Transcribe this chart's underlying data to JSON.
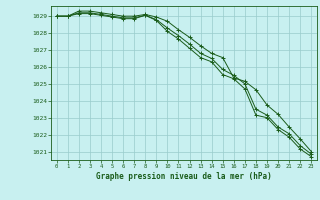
{
  "title": "Graphe pression niveau de la mer (hPa)",
  "background_color": "#c8f0f0",
  "grid_color": "#99cccc",
  "line_color": "#1a5c1a",
  "xlim": [
    -0.5,
    23.5
  ],
  "ylim": [
    1020.5,
    1029.6
  ],
  "yticks": [
    1021,
    1022,
    1023,
    1024,
    1025,
    1026,
    1027,
    1028,
    1029
  ],
  "xticks": [
    0,
    1,
    2,
    3,
    4,
    5,
    6,
    7,
    8,
    9,
    10,
    11,
    12,
    13,
    14,
    15,
    16,
    17,
    18,
    19,
    20,
    21,
    22,
    23
  ],
  "series": [
    [
      1029.0,
      1029.0,
      1029.15,
      1029.15,
      1029.05,
      1028.95,
      1028.85,
      1028.85,
      1029.05,
      1028.75,
      1028.1,
      1027.65,
      1027.1,
      1026.55,
      1026.3,
      1025.55,
      1025.3,
      1024.7,
      1023.15,
      1023.0,
      1022.3,
      1021.85,
      1021.15,
      1020.7
    ],
    [
      1029.0,
      1029.0,
      1029.2,
      1029.2,
      1029.1,
      1029.0,
      1028.9,
      1028.9,
      1029.05,
      1028.8,
      1028.3,
      1027.85,
      1027.35,
      1026.8,
      1026.5,
      1025.85,
      1025.5,
      1025.0,
      1023.5,
      1023.15,
      1022.45,
      1022.05,
      1021.35,
      1020.85
    ],
    [
      1029.0,
      1029.0,
      1029.3,
      1029.3,
      1029.2,
      1029.1,
      1029.0,
      1029.0,
      1029.1,
      1028.95,
      1028.7,
      1028.2,
      1027.75,
      1027.25,
      1026.8,
      1026.55,
      1025.35,
      1025.15,
      1024.65,
      1023.75,
      1023.2,
      1022.45,
      1021.75,
      1021.0
    ]
  ]
}
